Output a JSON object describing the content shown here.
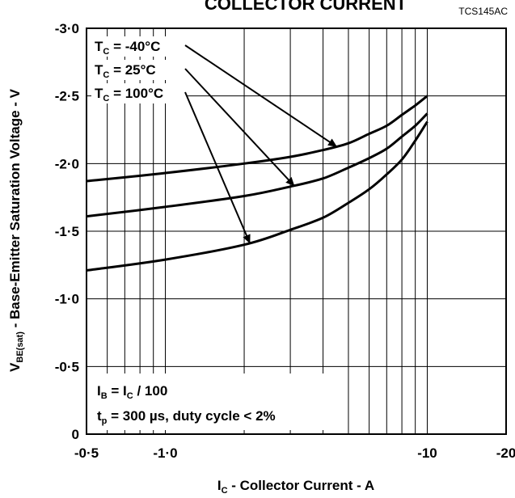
{
  "chart_data": {
    "type": "line",
    "title": "COLLECTOR CURRENT",
    "ref_code": "TCS145AC",
    "xlabel": {
      "main": "I",
      "sub": "C",
      "rest": " - Collector Current - A"
    },
    "ylabel": {
      "main": "V",
      "sub": "BE(sat)",
      "rest": " - Base-Emitter Saturation Voltage - V"
    },
    "x_scale": "log",
    "x_magnitude_range": [
      0.5,
      20
    ],
    "ylim": [
      0,
      -3
    ],
    "x_ticks": [
      {
        "value": 0.5,
        "label": "-0·5"
      },
      {
        "value": 1,
        "label": "-1·0"
      },
      {
        "value": 10,
        "label": "-10"
      },
      {
        "value": 20,
        "label": "-20"
      }
    ],
    "y_ticks": [
      {
        "value": 0,
        "label": "0"
      },
      {
        "value": -0.5,
        "label": "-0·5"
      },
      {
        "value": -1.0,
        "label": "-1·0"
      },
      {
        "value": -1.5,
        "label": "-1·5"
      },
      {
        "value": -2.0,
        "label": "-2·0"
      },
      {
        "value": -2.5,
        "label": "-2·5"
      },
      {
        "value": -3.0,
        "label": "-3·0"
      }
    ],
    "grid": true,
    "x_grid_values": [
      0.6,
      0.7,
      0.8,
      0.9,
      1,
      2,
      3,
      4,
      5,
      6,
      7,
      8,
      9,
      10
    ],
    "y_grid_values": [
      -0.5,
      -1.0,
      -1.5,
      -2.0,
      -2.5
    ],
    "series": [
      {
        "name": "T_C = -40°C",
        "x": [
          0.5,
          1,
          2,
          3,
          4,
          5,
          6,
          7,
          8,
          9,
          10
        ],
        "y": [
          -1.87,
          -1.93,
          -2.0,
          -2.05,
          -2.1,
          -2.15,
          -2.22,
          -2.28,
          -2.36,
          -2.43,
          -2.5
        ]
      },
      {
        "name": "T_C = 25°C",
        "x": [
          0.5,
          1,
          2,
          3,
          4,
          5,
          6,
          7,
          8,
          9,
          10
        ],
        "y": [
          -1.61,
          -1.68,
          -1.76,
          -1.83,
          -1.89,
          -1.97,
          -2.04,
          -2.11,
          -2.2,
          -2.28,
          -2.37
        ]
      },
      {
        "name": "T_C = 100°C",
        "x": [
          0.5,
          1,
          2,
          3,
          4,
          5,
          6,
          7,
          8,
          9,
          10
        ],
        "y": [
          -1.21,
          -1.29,
          -1.4,
          -1.51,
          -1.6,
          -1.71,
          -1.81,
          -1.92,
          -2.03,
          -2.17,
          -2.31
        ]
      }
    ],
    "legend": [
      {
        "sym": "T",
        "sub": "C",
        "rest": " =  -40°C"
      },
      {
        "sym": "T",
        "sub": "C",
        "rest": " =   25°C"
      },
      {
        "sym": "T",
        "sub": "C",
        "rest": " = 100°C"
      }
    ],
    "annotations": [
      {
        "sym": "I",
        "sub": "B",
        "rest": "  = I",
        "sub2": "C",
        "rest2": " / 100"
      },
      {
        "sym": "t",
        "sub": "p",
        "rest": "  = 300 µs, duty cycle < 2%",
        "sub2": "",
        "rest2": ""
      }
    ],
    "arrow_targets": [
      {
        "series": 0,
        "x": 4.5
      },
      {
        "series": 1,
        "x": 3.1
      },
      {
        "series": 2,
        "x": 2.1
      }
    ]
  }
}
